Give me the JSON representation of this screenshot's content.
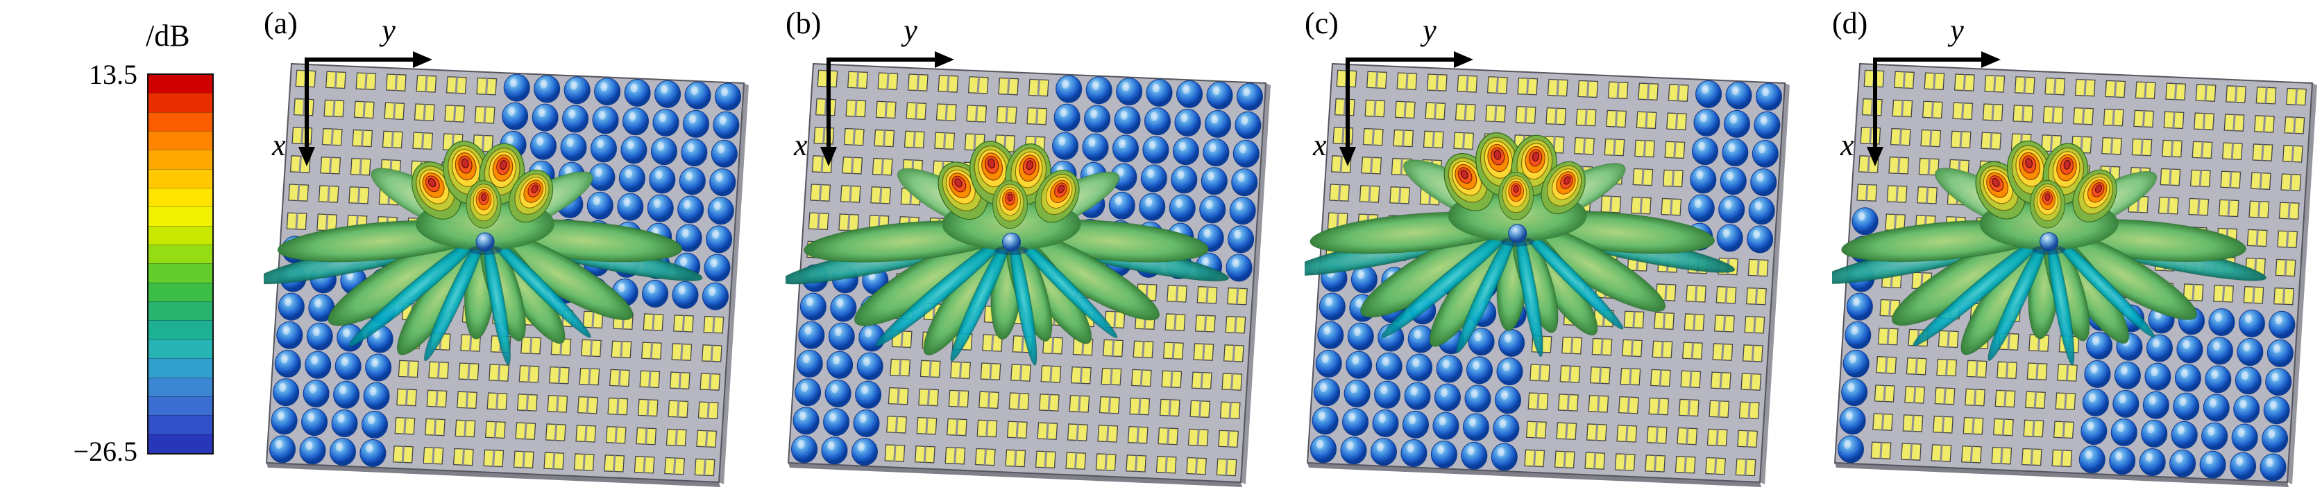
{
  "figure": {
    "colorbar": {
      "title": "/dB",
      "max": "13.5",
      "min": "−26.5",
      "colors": [
        "#cf0000",
        "#ea2e00",
        "#fa5d00",
        "#ff8500",
        "#ffa800",
        "#ffc800",
        "#ffe400",
        "#f2f200",
        "#c8e800",
        "#96dc14",
        "#64cd2d",
        "#3cbe46",
        "#28b46e",
        "#1eb092",
        "#28b4b4",
        "#32a0cd",
        "#3c87d2",
        "#3c6ed2",
        "#3250c8",
        "#2837b9"
      ]
    },
    "axes": {
      "x": "x",
      "y": "y"
    },
    "grid": {
      "cols": 15,
      "rows": 14
    },
    "substrate_color": "#b6b7c0",
    "element_color": "#f1eb6a",
    "element_lobe_color": "#1f64cf",
    "panels": [
      {
        "label": "(a)",
        "blue_regions": [
          [
            0.5,
            0,
            0.5,
            0.55
          ],
          [
            0,
            0.45,
            0.3,
            0.55
          ]
        ],
        "beam_center": [
          0.45,
          0.4
        ]
      },
      {
        "label": "(b)",
        "blue_regions": [
          [
            0.55,
            0,
            0.45,
            0.5
          ],
          [
            0,
            0.5,
            0.18,
            0.5
          ]
        ],
        "beam_center": [
          0.46,
          0.4
        ]
      },
      {
        "label": "(c)",
        "blue_regions": [
          [
            0.78,
            0,
            0.22,
            0.45
          ],
          [
            0,
            0.5,
            0.45,
            0.5
          ]
        ],
        "beam_center": [
          0.43,
          0.38
        ]
      },
      {
        "label": "(d)",
        "blue_regions": [
          [
            0,
            0.38,
            0.1,
            0.62
          ],
          [
            0.52,
            0.55,
            0.48,
            0.45
          ]
        ],
        "beam_center": [
          0.44,
          0.4
        ]
      }
    ]
  }
}
